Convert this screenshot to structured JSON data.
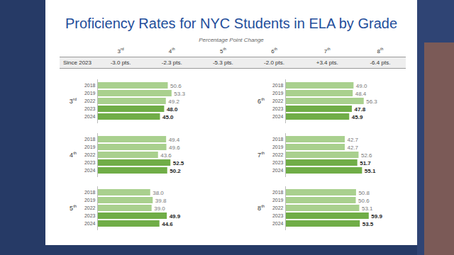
{
  "title": "Proficiency Rates for NYC Students in ELA by Grade",
  "change_table": {
    "caption": "Percentage Point Change",
    "row_label": "Since 2023",
    "columns": [
      "3rd",
      "4th",
      "5th",
      "6th",
      "7th",
      "8th"
    ],
    "cells": [
      "-3.0 pts.",
      "-2.3 pts.",
      "-5.3 pts.",
      "-2.0 pts.",
      "+3.4 pts.",
      "-6.4 pts."
    ]
  },
  "chart_data": [
    {
      "type": "bar",
      "title": "3rd",
      "orientation": "horizontal",
      "categories": [
        "2018",
        "2019",
        "2022",
        "2023",
        "2024"
      ],
      "values": [
        50.6,
        53.3,
        49.2,
        48.0,
        45.0
      ],
      "value_labels": [
        "50.6",
        "53.3",
        "49.2",
        "48.0",
        "45.0"
      ],
      "colors": [
        "#a9d08e",
        "#a9d08e",
        "#a9d08e",
        "#70ad47",
        "#70ad47"
      ],
      "data_labels": true,
      "tick_labels": "y",
      "xlim": [
        0,
        60
      ]
    },
    {
      "type": "bar",
      "title": "4th",
      "orientation": "horizontal",
      "categories": [
        "2018",
        "2019",
        "2022",
        "2023",
        "2024"
      ],
      "values": [
        49.4,
        49.6,
        43.6,
        52.5,
        50.2
      ],
      "value_labels": [
        "49.4",
        "49.6",
        "43.6",
        "52.5",
        "50.2"
      ],
      "colors": [
        "#a9d08e",
        "#a9d08e",
        "#a9d08e",
        "#70ad47",
        "#70ad47"
      ],
      "data_labels": true,
      "tick_labels": "y",
      "xlim": [
        0,
        60
      ]
    },
    {
      "type": "bar",
      "title": "5th",
      "orientation": "horizontal",
      "categories": [
        "2018",
        "2019",
        "2022",
        "2023",
        "2024"
      ],
      "values": [
        38.0,
        39.8,
        39.0,
        49.9,
        44.6
      ],
      "value_labels": [
        "38.0",
        "39.8",
        "39.0",
        "49.9",
        "44.6"
      ],
      "colors": [
        "#a9d08e",
        "#a9d08e",
        "#a9d08e",
        "#70ad47",
        "#70ad47"
      ],
      "data_labels": true,
      "tick_labels": "y",
      "xlim": [
        0,
        60
      ]
    },
    {
      "type": "bar",
      "title": "6th",
      "orientation": "horizontal",
      "categories": [
        "2018",
        "2019",
        "2022",
        "2023",
        "2024"
      ],
      "values": [
        49.0,
        48.4,
        56.3,
        47.8,
        45.9
      ],
      "value_labels": [
        "49.0",
        "48.4",
        "56.3",
        "47.8",
        "45.9"
      ],
      "colors": [
        "#a9d08e",
        "#a9d08e",
        "#a9d08e",
        "#70ad47",
        "#70ad47"
      ],
      "data_labels": true,
      "tick_labels": "y",
      "xlim": [
        0,
        60
      ]
    },
    {
      "type": "bar",
      "title": "7th",
      "orientation": "horizontal",
      "categories": [
        "2018",
        "2019",
        "2022",
        "2023",
        "2024"
      ],
      "values": [
        42.7,
        42.7,
        52.6,
        51.7,
        55.1
      ],
      "value_labels": [
        "42.7",
        "42.7",
        "52.6",
        "51.7",
        "55.1"
      ],
      "colors": [
        "#a9d08e",
        "#a9d08e",
        "#a9d08e",
        "#70ad47",
        "#70ad47"
      ],
      "data_labels": true,
      "tick_labels": "y",
      "xlim": [
        0,
        60
      ]
    },
    {
      "type": "bar",
      "title": "8th",
      "orientation": "horizontal",
      "categories": [
        "2018",
        "2019",
        "2022",
        "2023",
        "2024"
      ],
      "values": [
        50.8,
        50.6,
        53.1,
        59.9,
        53.5
      ],
      "value_labels": [
        "50.8",
        "50.6",
        "53.1",
        "59.9",
        "53.5"
      ],
      "colors": [
        "#a9d08e",
        "#a9d08e",
        "#a9d08e",
        "#70ad47",
        "#70ad47"
      ],
      "data_labels": true,
      "tick_labels": "y",
      "xlim": [
        0,
        60
      ]
    }
  ]
}
